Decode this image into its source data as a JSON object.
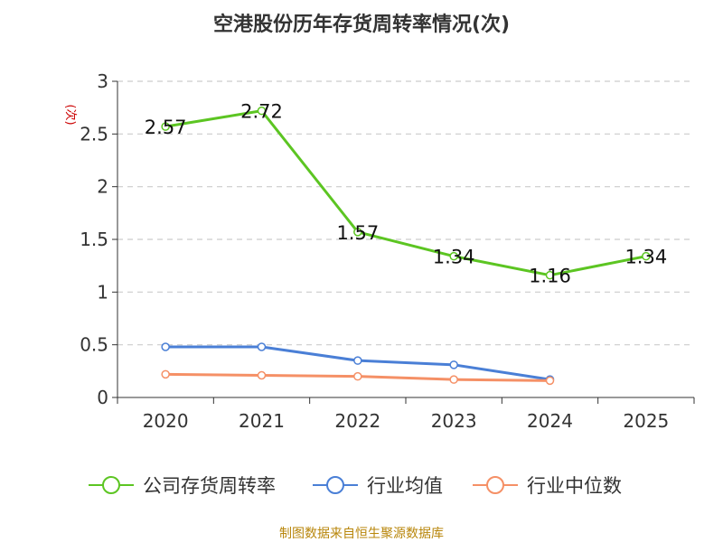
{
  "chart_data": {
    "type": "line",
    "title": "空港股份历年存货周转率情况(次)",
    "ylabel": "(次)",
    "categories": [
      "2020",
      "2021",
      "2022",
      "2023",
      "2024",
      "2025"
    ],
    "ylim": [
      0,
      3
    ],
    "yticks": [
      "0",
      "0.5",
      "1",
      "1.5",
      "2",
      "2.5",
      "3"
    ],
    "grid": true,
    "legend_position": "bottom",
    "series": [
      {
        "name": "公司存货周转率",
        "color": "#5cc522",
        "values": [
          2.57,
          2.72,
          1.57,
          1.34,
          1.16,
          1.34
        ],
        "labels": [
          "2.57",
          "2.72",
          "1.57",
          "1.34",
          "1.16",
          "1.34"
        ]
      },
      {
        "name": "行业均值",
        "color": "#4a7fd6",
        "values": [
          0.48,
          0.48,
          0.35,
          0.31,
          0.17,
          null
        ]
      },
      {
        "name": "行业中位数",
        "color": "#f59066",
        "values": [
          0.22,
          0.21,
          0.2,
          0.17,
          0.16,
          null
        ]
      }
    ],
    "source": "制图数据来自恒生聚源数据库"
  }
}
